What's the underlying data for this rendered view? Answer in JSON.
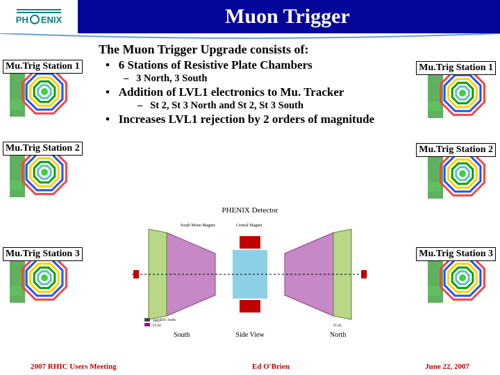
{
  "header": {
    "bg": "#06069a",
    "title": "Muon Trigger",
    "logo_text_pre": "PH",
    "logo_text_post": "ENIX"
  },
  "content": {
    "heading": "The Muon Trigger Upgrade consists of:",
    "b1": "6 Stations of Resistive Plate Chambers",
    "b1a": "3 North, 3 South",
    "b2": "Addition of LVL1 electronics to Mu. Tracker",
    "b2a": "St 2, St 3 North and St 2, St 3 South",
    "b3": "Increases LVL1 rejection by 2 orders of magnitude"
  },
  "stations": {
    "left": [
      {
        "label": "Mu.Trig Station 1",
        "top_label": 26,
        "top_img": 36
      },
      {
        "label": "Mu.Trig Station 2",
        "top_label": 144,
        "top_img": 152
      },
      {
        "label": "Mu.Trig Station 3",
        "top_label": 296,
        "top_img": 304
      }
    ],
    "right": [
      {
        "label": "Mu.Trig Station 1",
        "top_label": 28,
        "top_img": 38
      },
      {
        "label": "Mu.Trig Station 2",
        "top_label": 146,
        "top_img": 154
      },
      {
        "label": "Mu.Trig Station 3",
        "top_label": 296,
        "top_img": 304
      }
    ]
  },
  "detector": {
    "title": "PHENIX Detector",
    "labels": {
      "left": "South",
      "center": "Side View",
      "right": "North"
    },
    "small": {
      "a": "South Muon Magnet",
      "b": "Central Magnet"
    },
    "colors": {
      "mag1": "#c688c6",
      "mag2": "#b8d888",
      "bar": "#c00000",
      "band": "#8cd0e8"
    }
  },
  "footer": {
    "left": "2007 RHIC Users Meeting",
    "center": "Ed O'Brien",
    "right": "June 22, 2007"
  },
  "thumb": {
    "ring_colors": [
      "#ff4040",
      "#2050ff",
      "#ffd000",
      "#00a000",
      "#60c0c0"
    ],
    "bg_left": "#60b060",
    "bg_box": "#60c060"
  }
}
